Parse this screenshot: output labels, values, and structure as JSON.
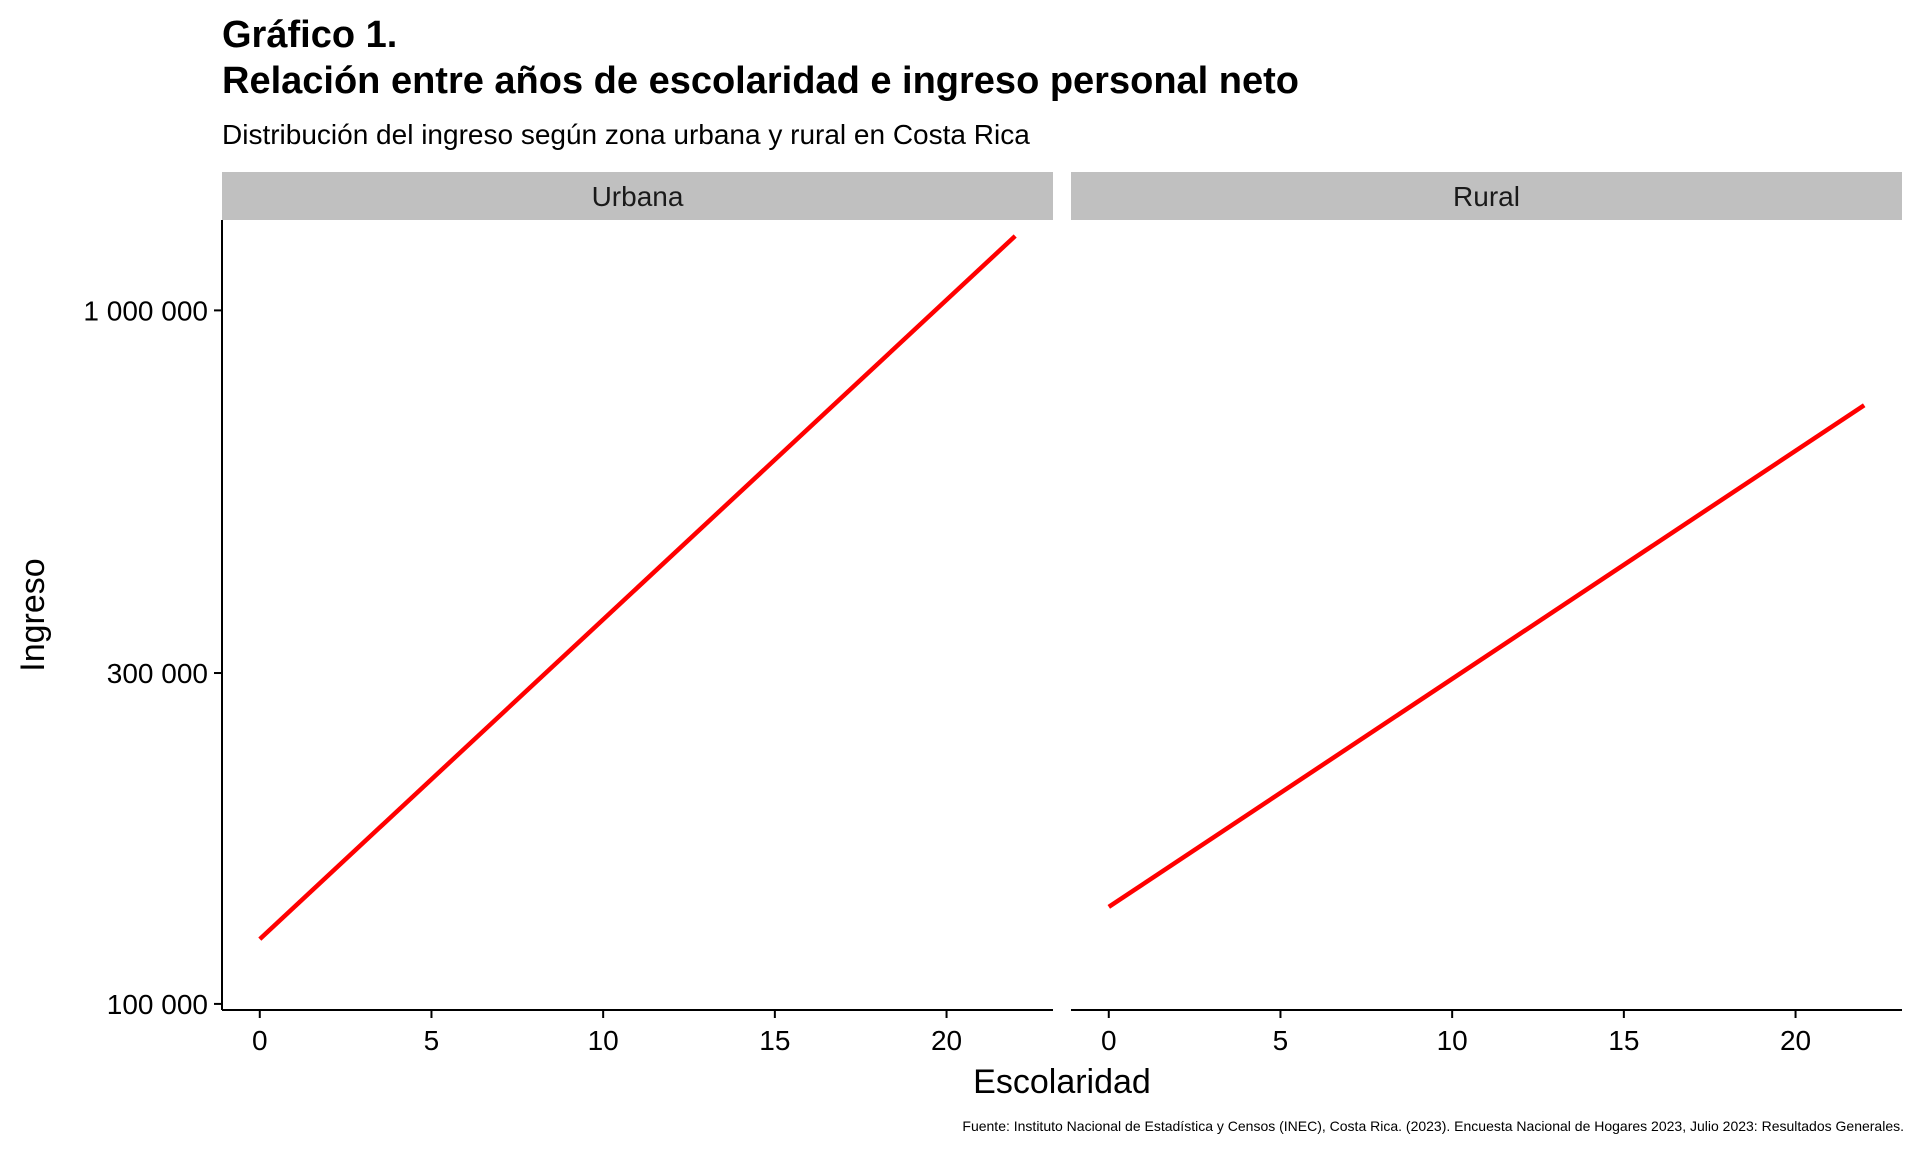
{
  "header": {
    "title_line1": "Gráfico 1.",
    "title_line2": "Relación entre años de escolaridad e ingreso personal neto",
    "subtitle": "Distribución del ingreso según zona urbana y rural en Costa Rica"
  },
  "caption": "Fuente: Instituto Nacional de Estadística y Censos (INEC), Costa Rica. (2023). Encuesta Nacional de Hogares 2023, Julio 2023: Resultados Generales.",
  "colors": {
    "line": "#ff0000",
    "strip": "#c0c0c0",
    "axis": "#000000"
  },
  "chart_data": {
    "type": "line",
    "title": "Gráfico 1. Relación entre años de escolaridad e ingreso personal neto",
    "subtitle": "Distribución del ingreso según zona urbana y rural en Costa Rica",
    "xlabel": "Escolaridad",
    "ylabel": "Ingreso",
    "y_scale": "log",
    "xlim": [
      -1.1,
      23.1
    ],
    "ylim": [
      98000,
      1350000
    ],
    "x_ticks": [
      0,
      5,
      10,
      15,
      20
    ],
    "x_tick_labels": [
      "0",
      "5",
      "10",
      "15",
      "20"
    ],
    "y_ticks": [
      100000,
      300000,
      1000000
    ],
    "y_tick_labels": [
      "100 000",
      "300 000",
      "1 000 000"
    ],
    "grid": false,
    "legend": "none",
    "facets": [
      {
        "label": "Urbana",
        "series": [
          {
            "x": [
              0,
              22
            ],
            "y": [
              124000,
              1280000
            ]
          }
        ]
      },
      {
        "label": "Rural",
        "series": [
          {
            "x": [
              0,
              22
            ],
            "y": [
              138000,
              730000
            ]
          }
        ]
      }
    ]
  }
}
